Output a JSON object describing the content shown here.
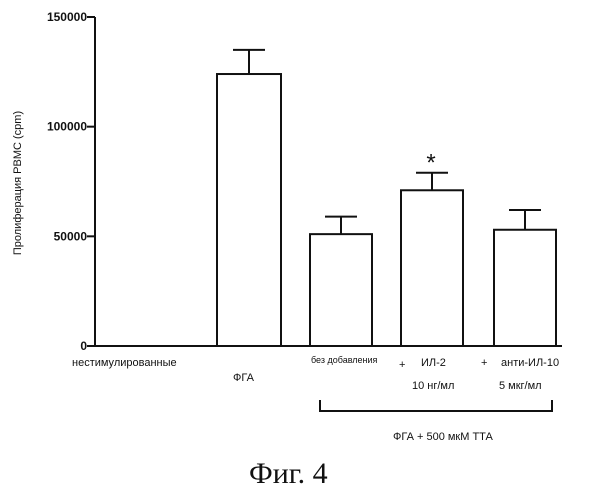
{
  "chart_data": {
    "type": "bar",
    "ylabel": "Пролиферация PBMC (cpm)",
    "ylim": [
      0,
      150000
    ],
    "yticks": [
      0,
      50000,
      100000,
      150000
    ],
    "ytick_labels": [
      "0",
      "50000",
      "100000",
      "150000"
    ],
    "categories": [
      "нестимулированные",
      "ФГА",
      "без добавления",
      "ИЛ-2",
      "анти-ИЛ-10"
    ],
    "values": [
      0,
      124000,
      51000,
      71000,
      53000
    ],
    "errors": [
      0,
      11000,
      8000,
      8000,
      9000
    ],
    "extra_labels": {
      "il2_prefix": "+",
      "il2_dose": "10 нг/мл",
      "anti_prefix": "+",
      "anti_dose": "5 мкг/мл"
    },
    "significance": {
      "category": "ИЛ-2",
      "mark": "*"
    },
    "bracket_label": "ФГА + 500 мкМ ТТА",
    "grid": false
  },
  "figure_caption": "Фиг. 4"
}
